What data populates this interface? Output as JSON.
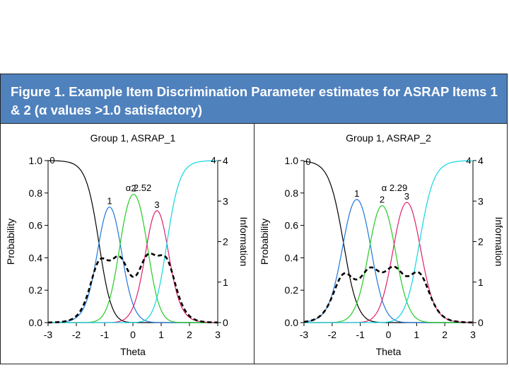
{
  "header": {
    "title": "Figure 1. Example Item Discrimination  Parameter estimates for ASRAP Items 1 & 2 (α values >1.0 satisfactory)"
  },
  "chart_data": [
    {
      "type": "line",
      "title": "Group 1, ASRAP_1",
      "xlabel": "Theta",
      "ylabel": "Probability",
      "y2label": "Information",
      "xlim": [
        -3,
        3
      ],
      "ylim": [
        0,
        1.0
      ],
      "y2lim": [
        0,
        4
      ],
      "x_ticks": [
        "-3",
        "-2",
        "-1",
        "0",
        "1",
        "2",
        "3"
      ],
      "y_ticks": [
        "0.0",
        "0.2",
        "0.4",
        "0.6",
        "0.8",
        "1.0"
      ],
      "y2_ticks": [
        "0",
        "1",
        "2",
        "3",
        "4"
      ],
      "annotation": "α 2.52",
      "model": {
        "discrimination": 2.52,
        "thresholds": [
          -1.2,
          -0.45,
          0.5,
          1.2
        ]
      },
      "series": [
        {
          "name": "0",
          "color": "#000000"
        },
        {
          "name": "1",
          "color": "#1f77d8"
        },
        {
          "name": "2",
          "color": "#22cc22"
        },
        {
          "name": "3",
          "color": "#e0206e"
        },
        {
          "name": "4",
          "color": "#11d6e0"
        },
        {
          "name": "Information",
          "color": "#000000",
          "dashed": true
        }
      ]
    },
    {
      "type": "line",
      "title": "Group 1, ASRAP_2",
      "xlabel": "Theta",
      "ylabel": "Probability",
      "y2label": "Information",
      "xlim": [
        -3,
        3
      ],
      "ylim": [
        0,
        1.0
      ],
      "y2lim": [
        0,
        4
      ],
      "x_ticks": [
        "-3",
        "-2",
        "-1",
        "0",
        "1",
        "2",
        "3"
      ],
      "y_ticks": [
        "0.0",
        "0.2",
        "0.4",
        "0.6",
        "0.8",
        "1.0"
      ],
      "y2_ticks": [
        "0",
        "1",
        "2",
        "3",
        "4"
      ],
      "annotation": "α 2.29",
      "model": {
        "discrimination": 2.29,
        "thresholds": [
          -1.6,
          -0.65,
          0.2,
          1.1
        ]
      },
      "series": [
        {
          "name": "0",
          "color": "#000000"
        },
        {
          "name": "1",
          "color": "#1f77d8"
        },
        {
          "name": "2",
          "color": "#22cc22"
        },
        {
          "name": "3",
          "color": "#e0206e"
        },
        {
          "name": "4",
          "color": "#11d6e0"
        },
        {
          "name": "Information",
          "color": "#000000",
          "dashed": true
        }
      ]
    }
  ]
}
